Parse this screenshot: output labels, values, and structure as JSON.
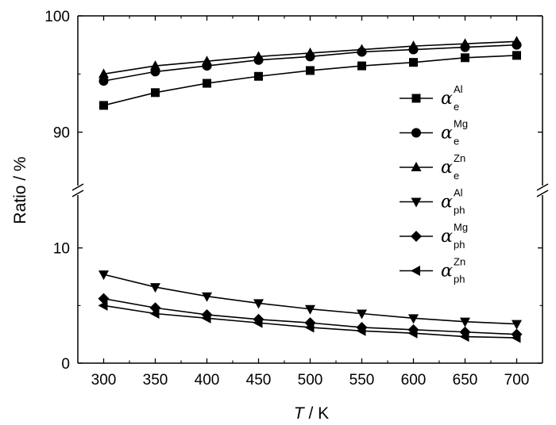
{
  "chart_data": {
    "type": "line",
    "xlabel_italic": "T",
    "xlabel_unit": " / K",
    "ylabel": "Ratio / %",
    "x": [
      300,
      350,
      400,
      450,
      500,
      550,
      600,
      650,
      700
    ],
    "xlim": [
      275,
      725
    ],
    "upper_panel": {
      "ylim": [
        85,
        100
      ],
      "ticks": [
        "90",
        "100"
      ]
    },
    "lower_panel": {
      "ylim": [
        0,
        15
      ],
      "ticks": [
        "0",
        "10"
      ]
    },
    "axis_break": true,
    "legend_position": "right-middle",
    "series": [
      {
        "symbol": "α",
        "sup": "Al",
        "sub": "e",
        "marker": "square",
        "panel": "upper",
        "values": [
          92.3,
          93.4,
          94.2,
          94.8,
          95.3,
          95.7,
          96.0,
          96.4,
          96.6
        ]
      },
      {
        "symbol": "α",
        "sup": "Mg",
        "sub": "e",
        "marker": "circle",
        "panel": "upper",
        "values": [
          94.4,
          95.2,
          95.7,
          96.2,
          96.5,
          96.9,
          97.1,
          97.3,
          97.5
        ]
      },
      {
        "symbol": "α",
        "sup": "Zn",
        "sub": "e",
        "marker": "triangle-up",
        "panel": "upper",
        "values": [
          95.0,
          95.7,
          96.1,
          96.5,
          96.8,
          97.1,
          97.4,
          97.6,
          97.8
        ]
      },
      {
        "symbol": "α",
        "sup": "Al",
        "sub": "ph",
        "marker": "triangle-down",
        "panel": "lower",
        "values": [
          7.7,
          6.6,
          5.8,
          5.2,
          4.7,
          4.3,
          3.9,
          3.6,
          3.4
        ]
      },
      {
        "symbol": "α",
        "sup": "Mg",
        "sub": "ph",
        "marker": "diamond",
        "panel": "lower",
        "values": [
          5.6,
          4.8,
          4.2,
          3.8,
          3.5,
          3.1,
          2.9,
          2.7,
          2.5
        ]
      },
      {
        "symbol": "α",
        "sup": "Zn",
        "sub": "ph",
        "marker": "triangle-left",
        "panel": "lower",
        "values": [
          5.0,
          4.3,
          3.9,
          3.5,
          3.1,
          2.8,
          2.6,
          2.3,
          2.2
        ]
      }
    ]
  }
}
